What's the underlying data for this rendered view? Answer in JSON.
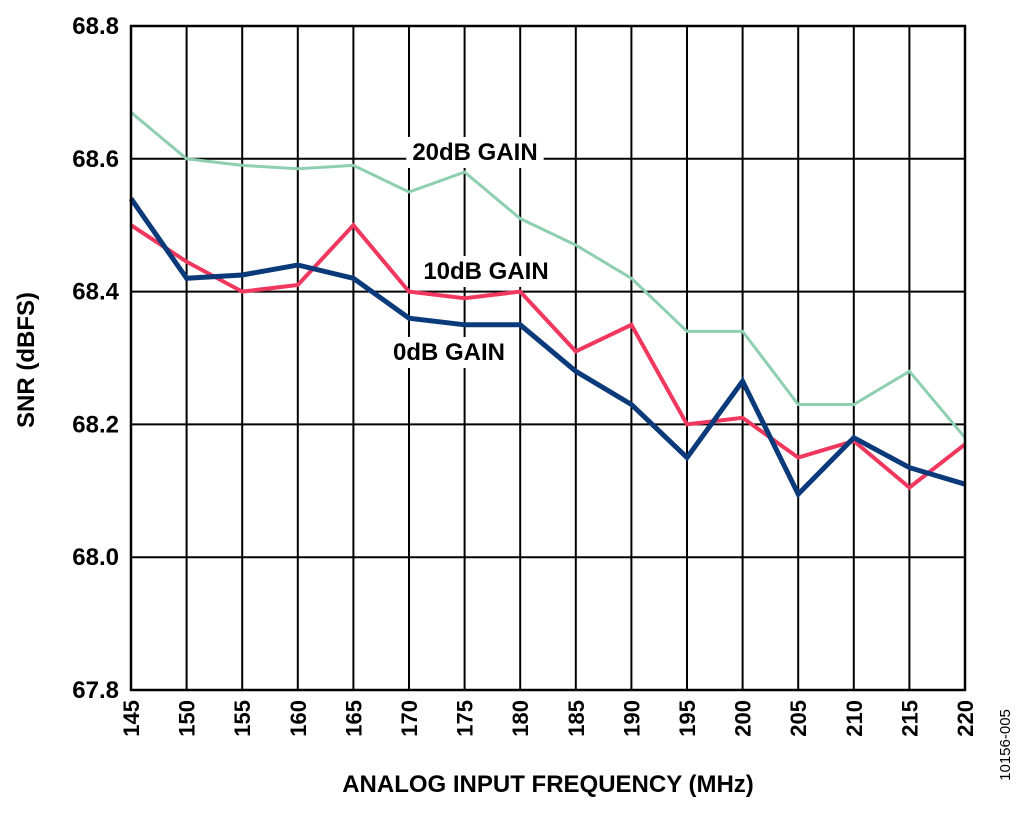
{
  "chart_data": {
    "type": "line",
    "xlabel": "ANALOG INPUT FREQUENCY (MHz)",
    "ylabel": "SNR (dBFS)",
    "xlim": [
      145,
      220
    ],
    "ylim": [
      67.8,
      68.8
    ],
    "x_ticks": [
      "145",
      "150",
      "155",
      "160",
      "165",
      "170",
      "175",
      "180",
      "185",
      "190",
      "195",
      "200",
      "205",
      "210",
      "215",
      "220"
    ],
    "y_ticks": [
      "68.8",
      "68.6",
      "68.4",
      "68.2",
      "68.0",
      "67.8"
    ],
    "grid": true,
    "figure_id": "10156-005",
    "x": [
      145,
      150,
      155,
      160,
      165,
      170,
      175,
      180,
      185,
      190,
      195,
      200,
      205,
      210,
      215,
      220
    ],
    "series": [
      {
        "name": "20dB GAIN",
        "color": "#8ecfb0",
        "values": [
          68.67,
          68.6,
          68.59,
          68.585,
          68.59,
          68.55,
          68.58,
          68.51,
          68.47,
          68.42,
          68.34,
          68.34,
          68.23,
          68.23,
          68.28,
          68.18
        ]
      },
      {
        "name": "10dB GAIN",
        "color": "#f0385e",
        "values": [
          68.5,
          68.445,
          68.4,
          68.41,
          68.5,
          68.4,
          68.39,
          68.4,
          68.31,
          68.35,
          68.2,
          68.21,
          68.15,
          68.175,
          68.105,
          68.17
        ]
      },
      {
        "name": "0dB GAIN",
        "color": "#0a3a7a",
        "values": [
          68.54,
          68.42,
          68.425,
          68.44,
          68.42,
          68.36,
          68.35,
          68.35,
          68.28,
          68.23,
          68.15,
          68.265,
          68.095,
          68.18,
          68.135,
          68.11
        ]
      }
    ]
  }
}
